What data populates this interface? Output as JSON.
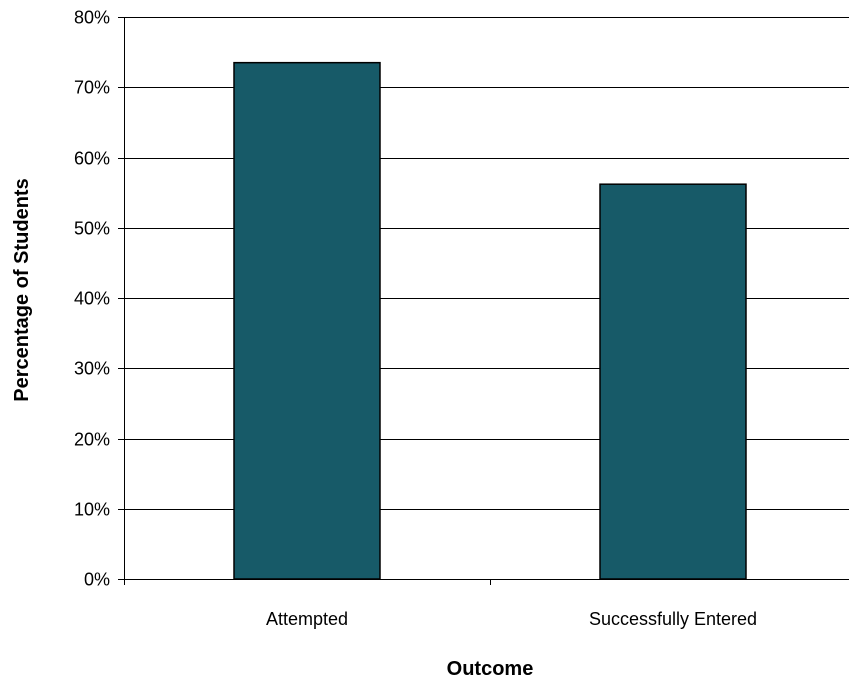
{
  "chart_data": {
    "type": "bar",
    "categories": [
      "Attempted",
      "Successfully Entered"
    ],
    "values": [
      73.5,
      56.2
    ],
    "title": "",
    "xlabel": "Outcome",
    "ylabel": "Percentage of Students",
    "ylim": [
      0,
      80
    ],
    "ytick_step": 10,
    "ytick_suffix": "%",
    "grid": true,
    "legend": "none",
    "bar_color": "#175a68",
    "bar_edge_color": "#000000",
    "grid_color": "#000000"
  }
}
